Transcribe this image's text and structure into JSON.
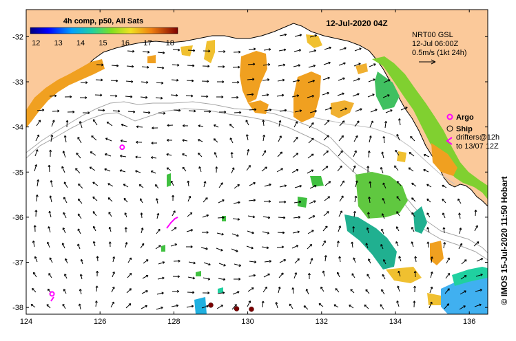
{
  "title": "4h comp, p50, All Sats",
  "datetime": "12-Jul-2020 04Z",
  "colorbar": {
    "ticks": [
      "12",
      "13",
      "14",
      "15",
      "16",
      "17",
      "18"
    ],
    "min": 12,
    "max": 18.6
  },
  "current_legend": {
    "line1": "NRT00 GSL",
    "line2": "12-Jul 06:00Z",
    "line3": "0.5m/s (1kt 24h)"
  },
  "symbols_legend": {
    "argo": "Argo",
    "ship": "Ship",
    "drifters_line1": "drifters@12h",
    "drifters_line2": "to 13/07 12Z"
  },
  "axes": {
    "lon_ticks": [
      "124",
      "126",
      "128",
      "130",
      "132",
      "134",
      "136"
    ],
    "lat_ticks": [
      "-32",
      "-33",
      "-34",
      "-35",
      "-36",
      "-37",
      "-38"
    ],
    "lon_range": [
      124,
      136.5
    ],
    "lat_range": [
      -31.4,
      -38.15
    ]
  },
  "credit": "© IMOS 15-Jul-2020 11:50 Hobart",
  "colors": {
    "land": "#fbc99a",
    "coast": "#000000",
    "isobath": "#a6a6a6",
    "argo": "#ff00ff",
    "ship_marker": "#7a0000"
  },
  "markers": {
    "argo": [
      [
        126.6,
        -34.45
      ],
      [
        124.7,
        -37.7
      ]
    ],
    "ship": [
      [
        129.0,
        -37.95
      ],
      [
        129.7,
        -38.03
      ],
      [
        130.1,
        -38.04
      ]
    ]
  }
}
